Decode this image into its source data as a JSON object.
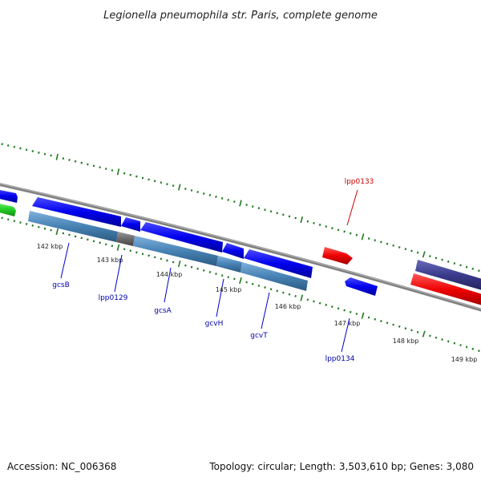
{
  "title": "Legionella pneumophila str. Paris, complete genome",
  "footer": {
    "accession": "Accession: NC_006368",
    "summary": "Topology: circular; Length: 3,503,610 bp; Genes: 3,080"
  },
  "colors": {
    "backbone": "#808080",
    "tick": "#1f7a1f",
    "cds_forward": "#0000ee",
    "cds_reverse": "#ee0000",
    "annotated_feature": "#4682b4",
    "other_forward": "#22cc22",
    "other_reverse": "#3a3a8c",
    "label_blue": "#0000aa",
    "label_red": "#cc0000",
    "leader": "#0000cc"
  },
  "scale_labels": [
    "142 kbp",
    "143 kbp",
    "144 kbp",
    "145 kbp",
    "146 kbp",
    "147 kbp",
    "148 kbp",
    "149 kbp"
  ],
  "gene_labels": [
    {
      "name": "gcsB",
      "color": "label_blue"
    },
    {
      "name": "lpp0129",
      "color": "label_blue"
    },
    {
      "name": "gcsA",
      "color": "label_blue"
    },
    {
      "name": "gcvH",
      "color": "label_blue"
    },
    {
      "name": "gcvT",
      "color": "label_blue"
    },
    {
      "name": "lpp0133",
      "color": "label_red"
    },
    {
      "name": "lpp0134",
      "color": "label_blue"
    }
  ]
}
